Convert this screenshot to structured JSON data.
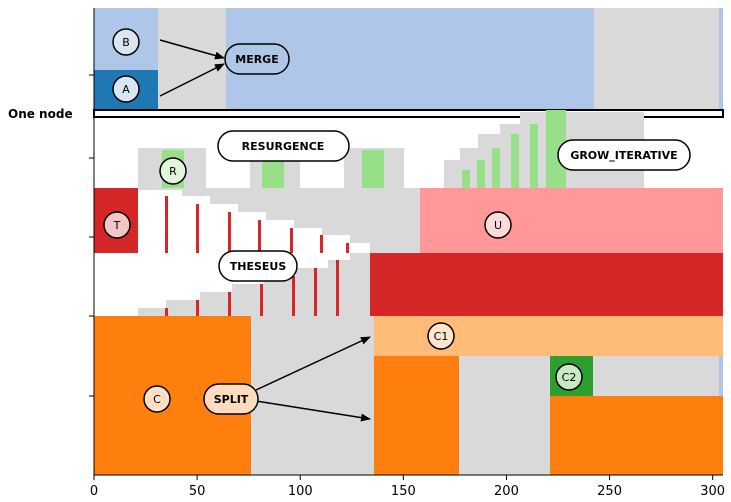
{
  "colors": {
    "grey": "#d9d9d9",
    "lightblue": "#aec7e8",
    "blue": "#1f77b4",
    "orange": "#ff7f0e",
    "lightorange": "#ffbb78",
    "red": "#d62728",
    "pink": "#ff9896",
    "green": "#2ca02c",
    "lightgreen": "#98df8a",
    "white": "#ffffff",
    "black": "#000000"
  },
  "axis": {
    "x_min": 0,
    "x_max": 305,
    "x_ticks": [
      0,
      50,
      100,
      150,
      200,
      250,
      300
    ]
  },
  "side_label": "One node",
  "circles": [
    {
      "id": "A",
      "label": "A"
    },
    {
      "id": "B",
      "label": "B"
    },
    {
      "id": "R",
      "label": "R"
    },
    {
      "id": "T",
      "label": "T"
    },
    {
      "id": "U",
      "label": "U"
    },
    {
      "id": "C",
      "label": "C"
    },
    {
      "id": "C1",
      "label": "C1"
    },
    {
      "id": "C2",
      "label": "C2"
    }
  ],
  "boxes": [
    {
      "id": "merge",
      "label": "MERGE"
    },
    {
      "id": "resurgence",
      "label": "RESURGENCE"
    },
    {
      "id": "grow",
      "label": "GROW_ITERATIVE"
    },
    {
      "id": "theseus",
      "label": "THESEUS"
    },
    {
      "id": "split",
      "label": "SPLIT"
    }
  ]
}
